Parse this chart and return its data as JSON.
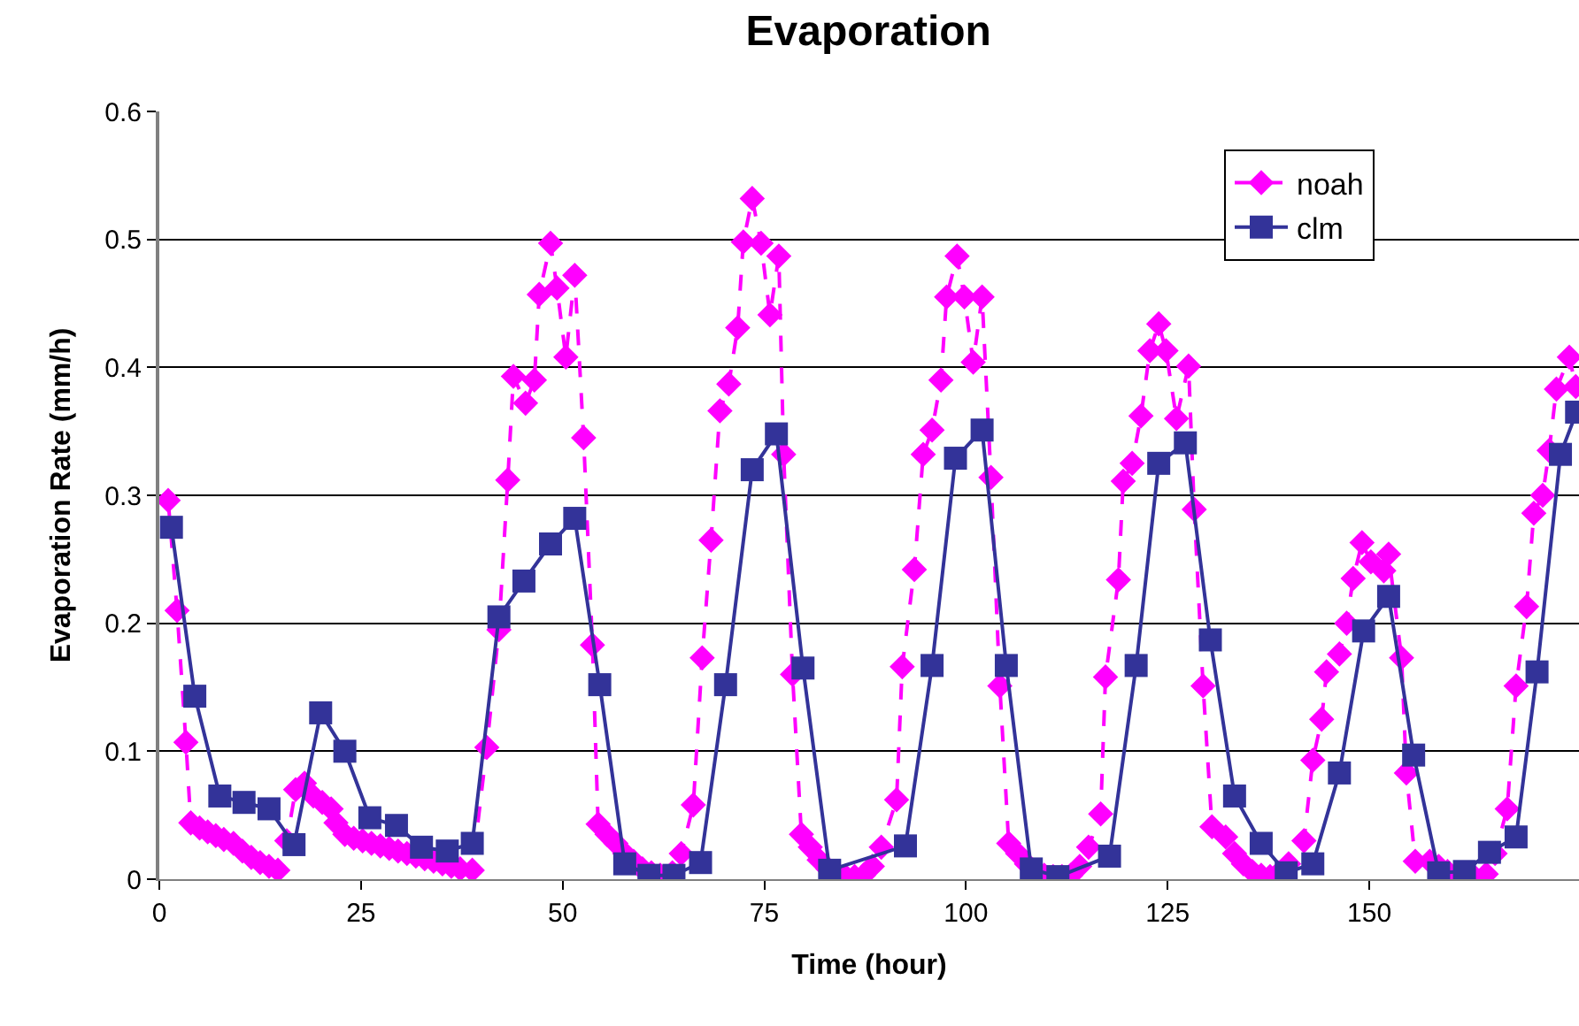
{
  "chart_data": {
    "type": "line",
    "title": "Evaporation",
    "xlabel": "Time (hour)",
    "ylabel": "Evaporation Rate (mm/h)",
    "xlim": [
      0,
      176
    ],
    "xticks": [
      0,
      25,
      50,
      75,
      100,
      125,
      150
    ],
    "ylim": [
      0,
      0.6
    ],
    "yticks": [
      0,
      0.1,
      0.2,
      0.3,
      0.4,
      0.5,
      0.6
    ],
    "grid": "y",
    "legend": "top right",
    "series": [
      {
        "name": "noah",
        "color": "#ff00ff",
        "marker": "diamond",
        "line_style": "dashed",
        "x": [
          1.1,
          2.2,
          3.3,
          3.9,
          5,
          6,
          7,
          8,
          9.2,
          10.3,
          11.4,
          12.5,
          13.6,
          14.7,
          15.8,
          16.9,
          18.0,
          19.1,
          20.2,
          21.3,
          21.9,
          23,
          24.1,
          25.2,
          26.3,
          27.4,
          28.5,
          29.6,
          30.7,
          31.8,
          32.9,
          34,
          35.1,
          36.2,
          37.3,
          38.8,
          40.6,
          42.1,
          43.2,
          43.9,
          45.4,
          46.5,
          47.1,
          48.5,
          49.3,
          50.4,
          51.5,
          52.6,
          53.7,
          54.4,
          55.5,
          56.6,
          57.7,
          58.8,
          59.9,
          61,
          62.1,
          63.6,
          64.7,
          66.2,
          67.3,
          68.4,
          69.5,
          70.6,
          71.7,
          72.4,
          73.5,
          74.6,
          75.7,
          76.8,
          77.4,
          78.5,
          79.6,
          80.7,
          81.8,
          82.9,
          84,
          85.1,
          86.2,
          87.3,
          88.4,
          89.5,
          91.4,
          92.1,
          93.6,
          94.7,
          95.8,
          96.9,
          97.6,
          98.9,
          99.8,
          100.9,
          102,
          103.1,
          104.2,
          105.3,
          106.4,
          107.5,
          108.6,
          109.7,
          110.8,
          111.9,
          113,
          114.1,
          115.2,
          116.7,
          117.3,
          118.9,
          119.5,
          120.6,
          121.7,
          122.8,
          123.9,
          124.8,
          126.1,
          127.6,
          128.3,
          129.4,
          130.5,
          132.2,
          133.3,
          134.4,
          135.5,
          136.6,
          137.7,
          138.8,
          140,
          141.9,
          143,
          144.1,
          144.7,
          146.3,
          147.2,
          148,
          149.1,
          150.2,
          151.8,
          152.4,
          154,
          154.6,
          155.7,
          157.5,
          158.6,
          159.7,
          160.8,
          161.9,
          163,
          164.5,
          165.6,
          167.1,
          168.2,
          169.5,
          170.4,
          171.5,
          172.3,
          173.2,
          174.8,
          175.6
        ],
        "values": [
          0.296,
          0.21,
          0.107,
          0.044,
          0.04,
          0.037,
          0.034,
          0.031,
          0.028,
          0.022,
          0.017,
          0.013,
          0.01,
          0.007,
          0.03,
          0.07,
          0.075,
          0.065,
          0.06,
          0.055,
          0.044,
          0.035,
          0.032,
          0.03,
          0.028,
          0.026,
          0.024,
          0.022,
          0.02,
          0.018,
          0.016,
          0.014,
          0.012,
          0.01,
          0.008,
          0.007,
          0.103,
          0.195,
          0.312,
          0.393,
          0.372,
          0.39,
          0.457,
          0.497,
          0.462,
          0.408,
          0.472,
          0.345,
          0.183,
          0.043,
          0.035,
          0.028,
          0.02,
          0.014,
          0.008,
          0.005,
          0.003,
          0.005,
          0.02,
          0.058,
          0.173,
          0.265,
          0.366,
          0.387,
          0.431,
          0.498,
          0.532,
          0.497,
          0.441,
          0.487,
          0.332,
          0.16,
          0.035,
          0.025,
          0.015,
          0.008,
          0.004,
          0.002,
          0.002,
          0.003,
          0.01,
          0.025,
          0.062,
          0.166,
          0.242,
          0.332,
          0.351,
          0.39,
          0.455,
          0.487,
          0.455,
          0.404,
          0.455,
          0.314,
          0.151,
          0.028,
          0.02,
          0.012,
          0.006,
          0.003,
          0.002,
          0.002,
          0.003,
          0.01,
          0.025,
          0.051,
          0.158,
          0.234,
          0.311,
          0.325,
          0.362,
          0.413,
          0.434,
          0.413,
          0.36,
          0.401,
          0.289,
          0.151,
          0.041,
          0.033,
          0.02,
          0.012,
          0.006,
          0.003,
          0.002,
          0.005,
          0.012,
          0.03,
          0.093,
          0.125,
          0.162,
          0.176,
          0.2,
          0.235,
          0.263,
          0.248,
          0.241,
          0.254,
          0.173,
          0.083,
          0.014,
          0.014,
          0.01,
          0.006,
          0.003,
          0.002,
          0.002,
          0.004,
          0.02,
          0.055,
          0.151,
          0.213,
          0.286,
          0.3,
          0.335,
          0.383,
          0.408,
          0.385
        ]
      },
      {
        "name": "clm",
        "color": "#333399",
        "marker": "square",
        "line_style": "solid",
        "x": [
          1.5,
          4.4,
          7.5,
          10.5,
          13.6,
          16.7,
          20.0,
          23.0,
          26.1,
          29.4,
          32.5,
          35.7,
          38.8,
          42.1,
          45.2,
          48.5,
          51.5,
          54.6,
          57.7,
          60.7,
          63.8,
          67.1,
          70.2,
          73.5,
          76.5,
          79.8,
          83.1,
          92.5,
          95.8,
          98.7,
          102.0,
          105.0,
          108.1,
          111.4,
          117.8,
          121.1,
          123.9,
          127.2,
          130.3,
          133.3,
          136.6,
          139.7,
          143.0,
          146.3,
          149.3,
          152.4,
          155.5,
          158.6,
          161.8,
          164.9,
          168.2,
          170.8,
          173.7,
          175.7
        ],
        "values": [
          0.275,
          0.143,
          0.065,
          0.06,
          0.055,
          0.027,
          0.13,
          0.1,
          0.048,
          0.042,
          0.025,
          0.022,
          0.028,
          0.205,
          0.233,
          0.262,
          0.282,
          0.152,
          0.012,
          0.003,
          0.003,
          0.013,
          0.152,
          0.32,
          0.348,
          0.165,
          0.007,
          0.026,
          0.167,
          0.329,
          0.351,
          0.167,
          0.008,
          0.002,
          0.018,
          0.167,
          0.325,
          0.341,
          0.187,
          0.065,
          0.028,
          0.005,
          0.012,
          0.083,
          0.194,
          0.221,
          0.097,
          0.005,
          0.006,
          0.021,
          0.033,
          0.162,
          0.332,
          0.365
        ]
      }
    ]
  }
}
